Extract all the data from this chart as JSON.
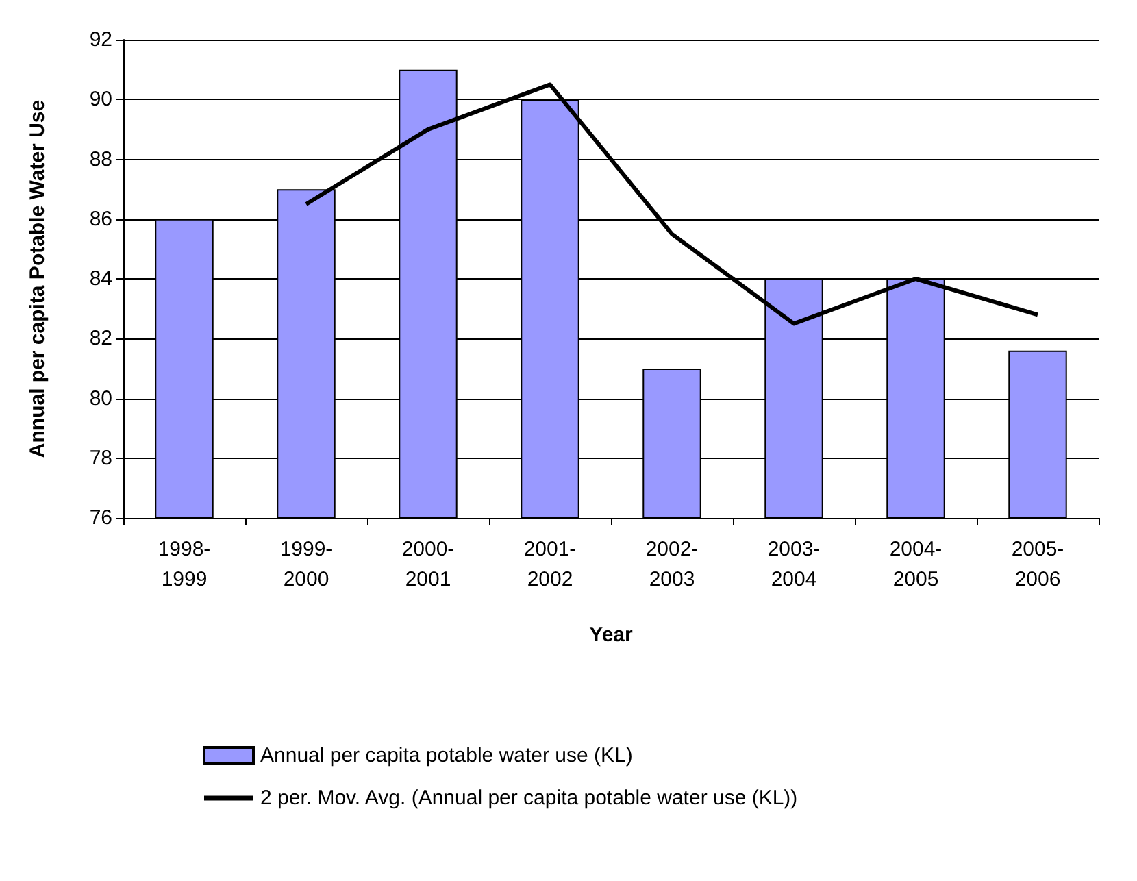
{
  "chart_data": {
    "type": "bar",
    "xlabel": "Year",
    "ylabel": "Annual per capita Potable Water Use",
    "categories": [
      "1998-1999",
      "1999-2000",
      "2000-2001",
      "2001-2002",
      "2002-2003",
      "2003-2004",
      "2004-2005",
      "2005-2006"
    ],
    "series": [
      {
        "name": "Annual per capita potable water use (KL)",
        "color": "#9999ff",
        "values": [
          86,
          87,
          91,
          90,
          81,
          84,
          84,
          81.6
        ]
      },
      {
        "name": "2 per. Mov. Avg. (Annual per capita potable water use (KL))",
        "type": "line",
        "color": "#000000",
        "values": [
          null,
          86.5,
          89,
          90.5,
          85.5,
          82.5,
          84,
          82.8
        ]
      }
    ],
    "ylim": [
      76,
      92
    ],
    "yticks": [
      76,
      78,
      80,
      82,
      84,
      86,
      88,
      90,
      92
    ],
    "grid": "y",
    "legend": "bottom",
    "marker": "none"
  }
}
